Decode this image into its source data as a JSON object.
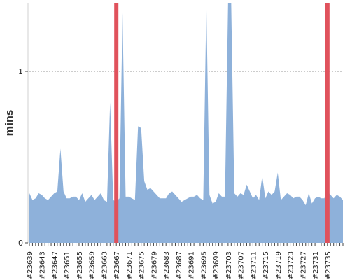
{
  "chart_data": {
    "type": "area",
    "ylabel": "mins",
    "xlabel": "",
    "title": "",
    "ylim": [
      0,
      1.4
    ],
    "grid": {
      "horizontal_dashed_at": [
        1
      ]
    },
    "y_ticks": [
      {
        "value": 0,
        "label": "0"
      },
      {
        "value": 1,
        "label": "1"
      }
    ],
    "x_tick_labels": [
      "#23639",
      "#23643",
      "#23647",
      "#23651",
      "#23655",
      "#23659",
      "#23663",
      "#23667",
      "#23671",
      "#23675",
      "#23679",
      "#23683",
      "#23687",
      "#23691",
      "#23695",
      "#23699",
      "#23703",
      "#23707",
      "#23711",
      "#23715",
      "#23719",
      "#23723",
      "#23727",
      "#23731",
      "#23735"
    ],
    "x_start": 23639,
    "values": [
      0.29,
      0.25,
      0.26,
      0.29,
      0.28,
      0.26,
      0.25,
      0.27,
      0.29,
      0.3,
      0.55,
      0.3,
      0.26,
      0.26,
      0.27,
      0.27,
      0.25,
      0.29,
      0.24,
      0.26,
      0.28,
      0.25,
      0.27,
      0.29,
      0.25,
      0.24,
      0.82,
      0.25,
      0.24,
      0.26,
      1.34,
      0.27,
      0.27,
      0.26,
      0.25,
      0.68,
      0.67,
      0.36,
      0.31,
      0.32,
      0.3,
      0.28,
      0.26,
      0.26,
      0.26,
      0.29,
      0.3,
      0.28,
      0.26,
      0.24,
      0.25,
      0.26,
      0.27,
      0.27,
      0.28,
      0.26,
      0.25,
      1.45,
      0.28,
      0.23,
      0.24,
      0.29,
      0.27,
      0.27,
      1.45,
      1.45,
      0.29,
      0.27,
      0.29,
      0.28,
      0.34,
      0.3,
      0.26,
      0.28,
      0.25,
      0.39,
      0.26,
      0.3,
      0.28,
      0.3,
      0.41,
      0.25,
      0.27,
      0.29,
      0.28,
      0.26,
      0.27,
      0.27,
      0.25,
      0.22,
      0.29,
      0.23,
      0.26,
      0.27,
      0.26,
      0.26,
      0.3,
      0.28,
      0.26,
      0.28,
      0.27,
      0.25
    ],
    "series_color": "#8eb1da",
    "markers": {
      "color": "#e0525c",
      "at": [
        23667,
        23735
      ]
    },
    "grid_color": "#999999"
  }
}
